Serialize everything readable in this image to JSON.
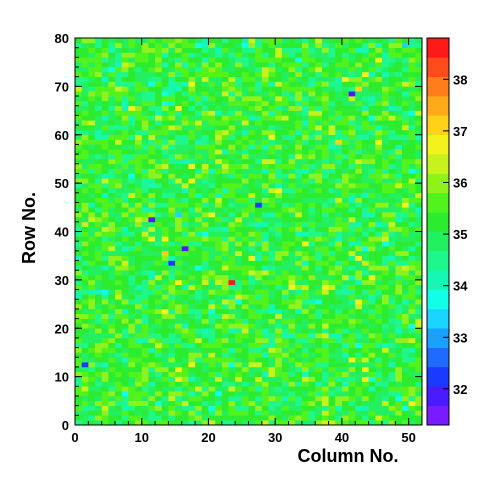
{
  "chart_data": {
    "type": "heatmap",
    "xlabel": "Column No.",
    "ylabel": "Row No.",
    "xlim": [
      0,
      52
    ],
    "ylim": [
      0,
      80
    ],
    "x_ticks": [
      0,
      10,
      20,
      30,
      40,
      50
    ],
    "y_ticks": [
      0,
      10,
      20,
      30,
      40,
      50,
      60,
      70,
      80
    ],
    "x_tick_labels": [
      "0",
      "10",
      "20",
      "30",
      "40",
      "50"
    ],
    "y_tick_labels": [
      "0",
      "10",
      "20",
      "30",
      "40",
      "50",
      "60",
      "70",
      "80"
    ],
    "columns": 52,
    "rows": 80,
    "z_range": [
      31.3,
      38.8
    ],
    "colorbar_ticks": [
      32,
      33,
      34,
      35,
      36,
      37,
      38
    ],
    "colorbar_tick_labels": [
      "32",
      "33",
      "34",
      "35",
      "36",
      "37",
      "38"
    ],
    "colormap": "rainbow (violet-blue-cyan-green-yellow-orange-red)",
    "colorbar_colors": [
      "#7a1bff",
      "#4a1bff",
      "#1a3aff",
      "#1f6bff",
      "#1aa0ff",
      "#19d5ff",
      "#12ffe8",
      "#14f7b5",
      "#1ef78c",
      "#22f060",
      "#2bec2e",
      "#52f21c",
      "#8ff21c",
      "#c8f21c",
      "#f2f21c",
      "#ffd21a",
      "#ffaa1a",
      "#ff7d1a",
      "#ff4a1a",
      "#ff1a1a"
    ],
    "typical_value": 35.2,
    "notable_cells": [
      {
        "column": 23,
        "row": 29,
        "value": 38.6
      },
      {
        "column": 11,
        "row": 42,
        "value": 31.8
      },
      {
        "column": 41,
        "row": 68,
        "value": 31.9
      },
      {
        "column": 16,
        "row": 36,
        "value": 32.0
      },
      {
        "column": 27,
        "row": 45,
        "value": 32.2
      },
      {
        "column": 14,
        "row": 33,
        "value": 32.3
      },
      {
        "column": 1,
        "row": 12,
        "value": 32.4
      }
    ]
  }
}
